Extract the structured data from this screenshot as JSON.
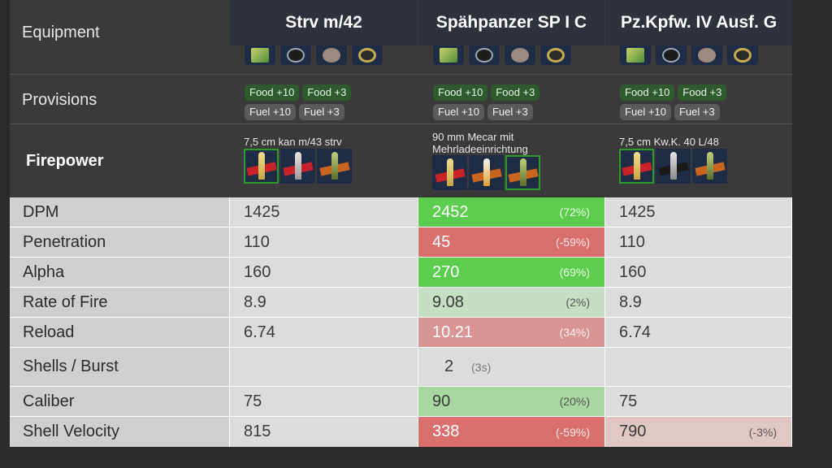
{
  "labels": {
    "equipment": "Equipment",
    "provisions": "Provisions",
    "firepower": "Firepower"
  },
  "tanks": [
    {
      "name": "Strv m/42",
      "gun": "7,5 cm kan m/43 strv",
      "provisions": [
        "Food +10",
        "Food +3",
        "Fuel +10",
        "Fuel +3"
      ]
    },
    {
      "name": "Spähpanzer SP I C",
      "gun": "90 mm Mecar mit Mehrladeeinrichtung",
      "provisions": [
        "Food +10",
        "Food +3",
        "Fuel +10",
        "Fuel +3"
      ]
    },
    {
      "name": "Pz.Kpfw. IV Ausf. G",
      "gun": "7,5 cm Kw.K. 40 L/48",
      "provisions": [
        "Food +10",
        "Food +3",
        "Fuel +10",
        "Fuel +3"
      ]
    }
  ],
  "stats": [
    {
      "label": "DPM",
      "v1": "1425",
      "v2": "2452",
      "p2": "(72%)",
      "v3": "1425",
      "p3": ""
    },
    {
      "label": "Penetration",
      "v1": "110",
      "v2": "45",
      "p2": "(-59%)",
      "v3": "110",
      "p3": ""
    },
    {
      "label": "Alpha",
      "v1": "160",
      "v2": "270",
      "p2": "(69%)",
      "v3": "160",
      "p3": ""
    },
    {
      "label": "Rate of Fire",
      "v1": "8.9",
      "v2": "9.08",
      "p2": "(2%)",
      "v3": "8.9",
      "p3": ""
    },
    {
      "label": "Reload",
      "v1": "6.74",
      "v2": "10.21",
      "p2": "(34%)",
      "v3": "6.74",
      "p3": ""
    },
    {
      "label": "Shells / Burst",
      "v1": "",
      "v2": "2",
      "p2": "(3s)",
      "v3": "",
      "p3": ""
    },
    {
      "label": "Caliber",
      "v1": "75",
      "v2": "90",
      "p2": "(20%)",
      "v3": "75",
      "p3": ""
    },
    {
      "label": "Shell Velocity",
      "v1": "815",
      "v2": "338",
      "p2": "(-59%)",
      "v3": "790",
      "p3": "(-3%)"
    }
  ],
  "colors": {
    "better_strong": "#5ccd4e",
    "better_light": "#a6d8a0",
    "worse_strong": "#d9706d",
    "worse_med": "#d99593"
  }
}
